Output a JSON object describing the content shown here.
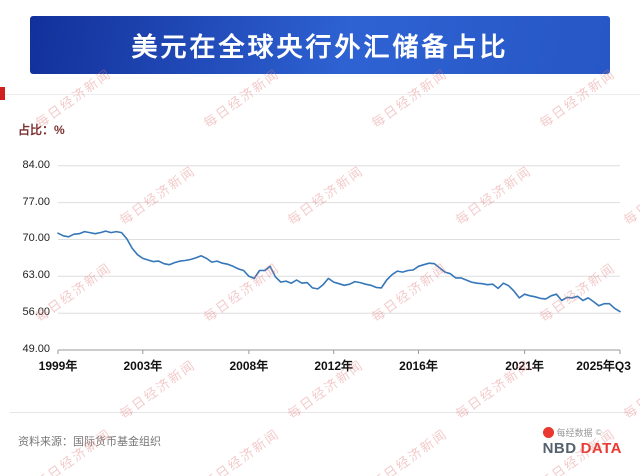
{
  "header": {
    "title": "美元在全球央行外汇储备占比"
  },
  "chart_data": {
    "type": "line",
    "title": "美元在全球央行外汇储备占比",
    "ylabel": "占比：%",
    "xlabel": "",
    "ylim": [
      49,
      87
    ],
    "xlim": [
      1999,
      2025.5
    ],
    "grid": "horizontal-solid-light-gray",
    "legend": "none",
    "yticks": [
      84,
      77,
      70,
      63,
      56,
      49
    ],
    "ytick_labels": [
      "84.00",
      "77.00",
      "70.00",
      "63.00",
      "56.00",
      "49.00"
    ],
    "xticks": [
      1999,
      2003,
      2008,
      2012,
      2016,
      2021,
      2025.5
    ],
    "xtick_labels": [
      "1999年",
      "2003年",
      "2008年",
      "2012年",
      "2016年",
      "2021年",
      "2025年Q3"
    ],
    "series": [
      {
        "name": "美元在全球央行外汇储备占比",
        "color": "#3577b8",
        "frequency": "quarterly",
        "start_period": "1999Q1",
        "end_period": "2025Q3",
        "x_start": 1999.0,
        "x_step": 0.25,
        "values": [
          71.2,
          70.7,
          70.5,
          71.0,
          71.1,
          71.5,
          71.3,
          71.1,
          71.3,
          71.6,
          71.3,
          71.5,
          71.3,
          70.1,
          68.3,
          67.1,
          66.4,
          66.1,
          65.8,
          65.9,
          65.4,
          65.2,
          65.6,
          65.9,
          66.0,
          66.2,
          66.5,
          66.9,
          66.4,
          65.7,
          65.9,
          65.5,
          65.3,
          64.9,
          64.4,
          64.1,
          63.0,
          62.6,
          64.1,
          64.1,
          64.9,
          62.9,
          61.9,
          62.1,
          61.7,
          62.3,
          61.7,
          61.8,
          60.8,
          60.6,
          61.4,
          62.6,
          61.9,
          61.6,
          61.3,
          61.5,
          62.0,
          61.8,
          61.5,
          61.3,
          60.9,
          60.8,
          62.3,
          63.3,
          64.0,
          63.8,
          64.1,
          64.2,
          64.9,
          65.2,
          65.5,
          65.4,
          64.6,
          63.8,
          63.5,
          62.7,
          62.7,
          62.3,
          61.9,
          61.7,
          61.6,
          61.4,
          61.5,
          60.7,
          61.7,
          61.2,
          60.2,
          58.9,
          59.6,
          59.3,
          59.1,
          58.8,
          58.7,
          59.3,
          59.6,
          58.4,
          59.0,
          58.9,
          59.2,
          58.4,
          58.9,
          58.2,
          57.4,
          57.8,
          57.8,
          56.9,
          56.3
        ]
      }
    ]
  },
  "footer": {
    "source": "资料来源：国际货币基金组织",
    "brand_cn": "每经数据",
    "brand_mark": "©",
    "brand_en_1": "NBD",
    "brand_en_2": "DATA"
  },
  "watermark": {
    "text": "每日经济新闻"
  },
  "colors": {
    "banner_start": "#12309a",
    "banner_end": "#2e62d2",
    "line": "#3577b8",
    "logo_red": "#e8382f",
    "watermark": "#de6e6e",
    "red_accent": "#cf1f1f"
  }
}
